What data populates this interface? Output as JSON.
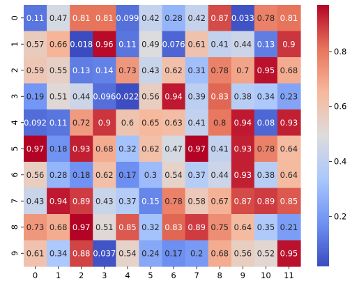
{
  "chart_data": {
    "type": "heatmap",
    "title": "",
    "xlabel": "",
    "ylabel": "",
    "x_tick_labels": [
      "0",
      "1",
      "2",
      "3",
      "4",
      "5",
      "6",
      "7",
      "8",
      "9",
      "10",
      "11"
    ],
    "y_tick_labels": [
      "0",
      "1",
      "2",
      "3",
      "4",
      "5",
      "6",
      "7",
      "8",
      "9"
    ],
    "values": [
      [
        0.11,
        0.47,
        0.81,
        0.81,
        0.099,
        0.42,
        0.28,
        0.42,
        0.87,
        0.033,
        0.78,
        0.81
      ],
      [
        0.57,
        0.66,
        0.018,
        0.96,
        0.11,
        0.49,
        0.076,
        0.61,
        0.41,
        0.44,
        0.13,
        0.9
      ],
      [
        0.59,
        0.55,
        0.13,
        0.14,
        0.73,
        0.43,
        0.62,
        0.31,
        0.78,
        0.7,
        0.95,
        0.68
      ],
      [
        0.19,
        0.51,
        0.44,
        0.096,
        0.022,
        0.56,
        0.94,
        0.39,
        0.83,
        0.38,
        0.34,
        0.23
      ],
      [
        0.092,
        0.11,
        0.72,
        0.9,
        0.6,
        0.65,
        0.63,
        0.41,
        0.8,
        0.94,
        0.08,
        0.93
      ],
      [
        0.97,
        0.18,
        0.93,
        0.68,
        0.32,
        0.62,
        0.47,
        0.97,
        0.41,
        0.93,
        0.78,
        0.64
      ],
      [
        0.56,
        0.28,
        0.18,
        0.62,
        0.17,
        0.3,
        0.54,
        0.37,
        0.44,
        0.93,
        0.38,
        0.64
      ],
      [
        0.43,
        0.94,
        0.89,
        0.43,
        0.37,
        0.15,
        0.78,
        0.58,
        0.67,
        0.87,
        0.89,
        0.85
      ],
      [
        0.73,
        0.68,
        0.97,
        0.51,
        0.85,
        0.32,
        0.83,
        0.89,
        0.75,
        0.64,
        0.35,
        0.21
      ],
      [
        0.61,
        0.34,
        0.88,
        0.037,
        0.54,
        0.24,
        0.17,
        0.2,
        0.68,
        0.56,
        0.52,
        0.95
      ]
    ],
    "cell_labels": [
      [
        "0.11",
        "0.47",
        "0.81",
        "0.81",
        "0.099",
        "0.42",
        "0.28",
        "0.42",
        "0.87",
        "0.033",
        "0.78",
        "0.81"
      ],
      [
        "0.57",
        "0.66",
        "0.018",
        "0.96",
        "0.11",
        "0.49",
        "0.076",
        "0.61",
        "0.41",
        "0.44",
        "0.13",
        "0.9"
      ],
      [
        "0.59",
        "0.55",
        "0.13",
        "0.14",
        "0.73",
        "0.43",
        "0.62",
        "0.31",
        "0.78",
        "0.7",
        "0.95",
        "0.68"
      ],
      [
        "0.19",
        "0.51",
        "0.44",
        "0.096",
        "0.022",
        "0.56",
        "0.94",
        "0.39",
        "0.83",
        "0.38",
        "0.34",
        "0.23"
      ],
      [
        "0.092",
        "0.11",
        "0.72",
        "0.9",
        "0.6",
        "0.65",
        "0.63",
        "0.41",
        "0.8",
        "0.94",
        "0.08",
        "0.93"
      ],
      [
        "0.97",
        "0.18",
        "0.93",
        "0.68",
        "0.32",
        "0.62",
        "0.47",
        "0.97",
        "0.41",
        "0.93",
        "0.78",
        "0.64"
      ],
      [
        "0.56",
        "0.28",
        "0.18",
        "0.62",
        "0.17",
        "0.3",
        "0.54",
        "0.37",
        "0.44",
        "0.93",
        "0.38",
        "0.64"
      ],
      [
        "0.43",
        "0.94",
        "0.89",
        "0.43",
        "0.37",
        "0.15",
        "0.78",
        "0.58",
        "0.67",
        "0.87",
        "0.89",
        "0.85"
      ],
      [
        "0.73",
        "0.68",
        "0.97",
        "0.51",
        "0.85",
        "0.32",
        "0.83",
        "0.89",
        "0.75",
        "0.64",
        "0.35",
        "0.21"
      ],
      [
        "0.61",
        "0.34",
        "0.88",
        "0.037",
        "0.54",
        "0.24",
        "0.17",
        "0.2",
        "0.68",
        "0.56",
        "0.52",
        "0.95"
      ]
    ],
    "colormap": "coolwarm",
    "color_stops": [
      "#3b4cc0",
      "#6f92f3",
      "#aac7fd",
      "#dddcdc",
      "#f7b89c",
      "#e7745b",
      "#b40426"
    ],
    "colorbar": {
      "vmin": 0.018,
      "vmax": 0.97,
      "ticks": [
        0.2,
        0.4,
        0.6,
        0.8
      ],
      "tick_labels": [
        "0.2",
        "0.4",
        "0.6",
        "0.8"
      ]
    },
    "grid": false,
    "legend": "colorbar-right"
  }
}
